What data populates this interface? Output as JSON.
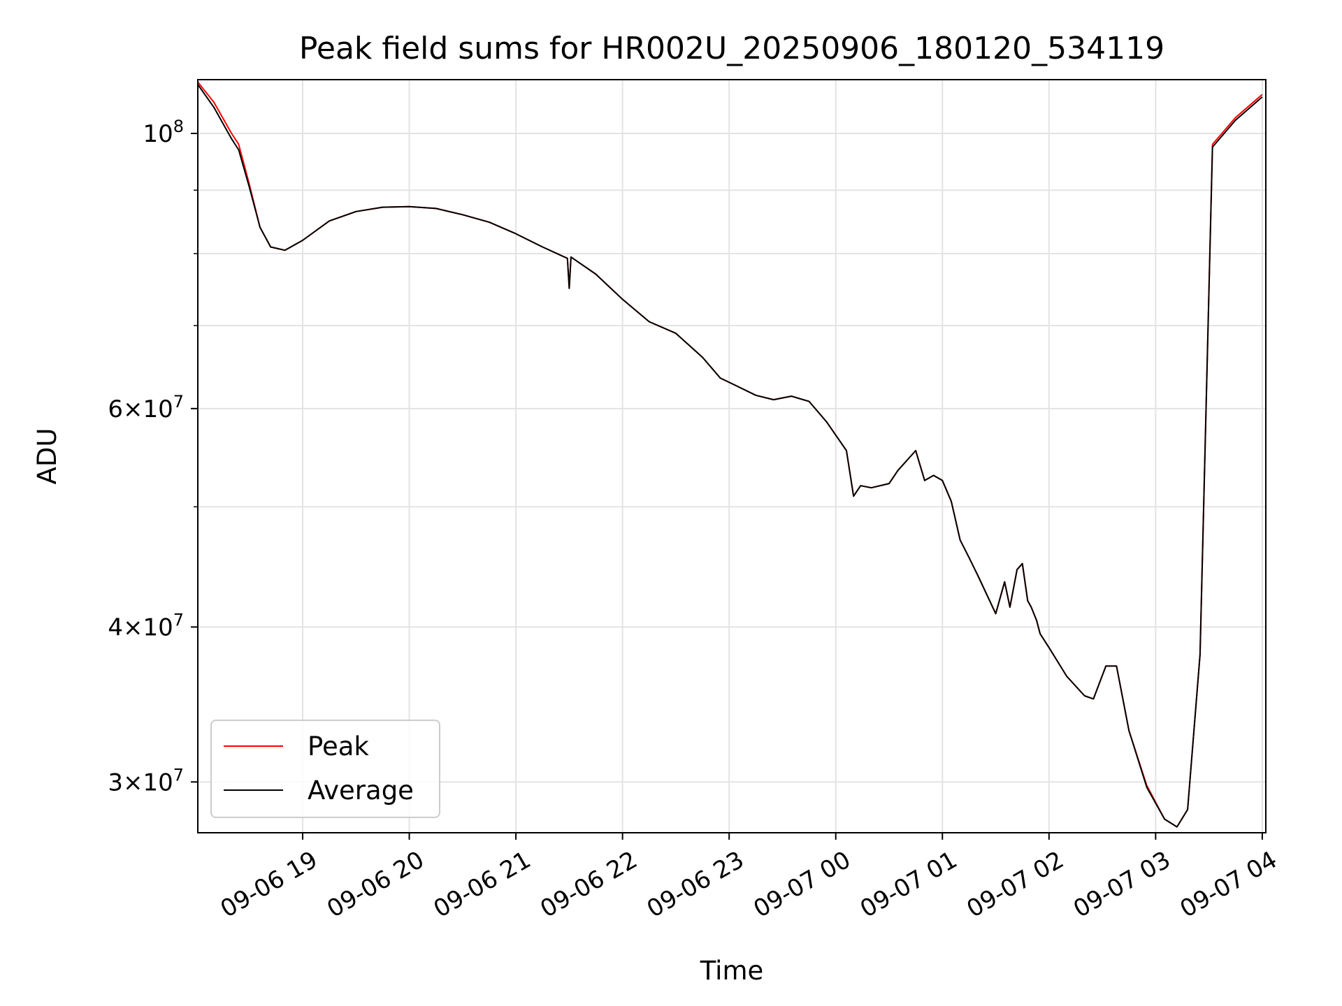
{
  "chart_data": {
    "type": "line",
    "title": "Peak field sums for HR002U_20250906_180120_534119",
    "xlabel": "Time",
    "ylabel": "ADU",
    "yscale": "log",
    "grid": true,
    "legend_placement": "lower-left",
    "xlim": [
      "2025-09-06 18:01",
      "2025-09-07 04:02"
    ],
    "ylim": [
      27300000,
      110500000
    ],
    "x_ticks": [
      "09-06 19",
      "09-06 20",
      "09-06 21",
      "09-06 22",
      "09-06 23",
      "09-07 00",
      "09-07 01",
      "09-07 02",
      "09-07 03",
      "09-07 04"
    ],
    "y_ticks": [
      {
        "value": 30000000,
        "mantissa": "3",
        "exponent": "7"
      },
      {
        "value": 40000000,
        "mantissa": "4",
        "exponent": "7"
      },
      {
        "value": 60000000,
        "mantissa": "6",
        "exponent": "7"
      },
      {
        "value": 100000000,
        "mantissa": "",
        "exponent": "8"
      }
    ],
    "y_minor_ticks": [
      50000000,
      70000000,
      80000000,
      90000000
    ],
    "series": [
      {
        "name": "Peak",
        "color": "#ff0000",
        "x": [
          "2025-09-06 18:01",
          "2025-09-06 18:10",
          "2025-09-06 18:20",
          "2025-09-06 18:24",
          "2025-09-06 18:30",
          "2025-09-06 18:36",
          "2025-09-06 18:42",
          "2025-09-06 18:50",
          "2025-09-06 19:00",
          "2025-09-06 19:15",
          "2025-09-06 19:30",
          "2025-09-06 19:45",
          "2025-09-06 20:00",
          "2025-09-06 20:15",
          "2025-09-06 20:30",
          "2025-09-06 20:45",
          "2025-09-06 21:00",
          "2025-09-06 21:15",
          "2025-09-06 21:29",
          "2025-09-06 21:30",
          "2025-09-06 21:31",
          "2025-09-06 21:45",
          "2025-09-06 22:00",
          "2025-09-06 22:15",
          "2025-09-06 22:30",
          "2025-09-06 22:45",
          "2025-09-06 22:55",
          "2025-09-06 23:05",
          "2025-09-06 23:15",
          "2025-09-06 23:25",
          "2025-09-06 23:35",
          "2025-09-06 23:45",
          "2025-09-06 23:55",
          "2025-09-07 00:06",
          "2025-09-07 00:10",
          "2025-09-07 00:14",
          "2025-09-07 00:20",
          "2025-09-07 00:30",
          "2025-09-07 00:35",
          "2025-09-07 00:45",
          "2025-09-07 00:50",
          "2025-09-07 00:55",
          "2025-09-07 01:00",
          "2025-09-07 01:05",
          "2025-09-07 01:10",
          "2025-09-07 01:15",
          "2025-09-07 01:20",
          "2025-09-07 01:30",
          "2025-09-07 01:35",
          "2025-09-07 01:38",
          "2025-09-07 01:42",
          "2025-09-07 01:45",
          "2025-09-07 01:48",
          "2025-09-07 01:50",
          "2025-09-07 01:53",
          "2025-09-07 01:55",
          "2025-09-07 02:00",
          "2025-09-07 02:10",
          "2025-09-07 02:20",
          "2025-09-07 02:25",
          "2025-09-07 02:32",
          "2025-09-07 02:38",
          "2025-09-07 02:45",
          "2025-09-07 02:55",
          "2025-09-07 03:05",
          "2025-09-07 03:12",
          "2025-09-07 03:18",
          "2025-09-07 03:25",
          "2025-09-07 03:32",
          "2025-09-07 03:45",
          "2025-09-07 04:00"
        ],
        "y": [
          110000000,
          106000000,
          100000000,
          98000000,
          91000000,
          84000000,
          81000000,
          80500000,
          82000000,
          85000000,
          86500000,
          87200000,
          87300000,
          87000000,
          86000000,
          84800000,
          83000000,
          81000000,
          79300000,
          75000000,
          79500000,
          77000000,
          73500000,
          70500000,
          69000000,
          66000000,
          63500000,
          62500000,
          61500000,
          61000000,
          61400000,
          60800000,
          58500000,
          55500000,
          51000000,
          52000000,
          51800000,
          52200000,
          53500000,
          55500000,
          52500000,
          53000000,
          52500000,
          50500000,
          47000000,
          45500000,
          44000000,
          41000000,
          43500000,
          41500000,
          44500000,
          45000000,
          42000000,
          41500000,
          40500000,
          39500000,
          38500000,
          36500000,
          35200000,
          35000000,
          37200000,
          37200000,
          33000000,
          29800000,
          28000000,
          27600000,
          28500000,
          38000000,
          98000000,
          103000000,
          107500000
        ]
      },
      {
        "name": "Average",
        "color": "#000000",
        "x": [
          "2025-09-06 18:01",
          "2025-09-06 18:10",
          "2025-09-06 18:20",
          "2025-09-06 18:24",
          "2025-09-06 18:30",
          "2025-09-06 18:36",
          "2025-09-06 18:42",
          "2025-09-06 18:50",
          "2025-09-06 19:00",
          "2025-09-06 19:15",
          "2025-09-06 19:30",
          "2025-09-06 19:45",
          "2025-09-06 20:00",
          "2025-09-06 20:15",
          "2025-09-06 20:30",
          "2025-09-06 20:45",
          "2025-09-06 21:00",
          "2025-09-06 21:15",
          "2025-09-06 21:29",
          "2025-09-06 21:30",
          "2025-09-06 21:31",
          "2025-09-06 21:45",
          "2025-09-06 22:00",
          "2025-09-06 22:15",
          "2025-09-06 22:30",
          "2025-09-06 22:45",
          "2025-09-06 22:55",
          "2025-09-06 23:05",
          "2025-09-06 23:15",
          "2025-09-06 23:25",
          "2025-09-06 23:35",
          "2025-09-06 23:45",
          "2025-09-06 23:55",
          "2025-09-07 00:06",
          "2025-09-07 00:10",
          "2025-09-07 00:14",
          "2025-09-07 00:20",
          "2025-09-07 00:30",
          "2025-09-07 00:35",
          "2025-09-07 00:45",
          "2025-09-07 00:50",
          "2025-09-07 00:55",
          "2025-09-07 01:00",
          "2025-09-07 01:05",
          "2025-09-07 01:10",
          "2025-09-07 01:15",
          "2025-09-07 01:20",
          "2025-09-07 01:30",
          "2025-09-07 01:35",
          "2025-09-07 01:38",
          "2025-09-07 01:42",
          "2025-09-07 01:45",
          "2025-09-07 01:48",
          "2025-09-07 01:50",
          "2025-09-07 01:53",
          "2025-09-07 01:55",
          "2025-09-07 02:00",
          "2025-09-07 02:10",
          "2025-09-07 02:20",
          "2025-09-07 02:25",
          "2025-09-07 02:32",
          "2025-09-07 02:38",
          "2025-09-07 02:45",
          "2025-09-07 02:55",
          "2025-09-07 03:05",
          "2025-09-07 03:12",
          "2025-09-07 03:18",
          "2025-09-07 03:25",
          "2025-09-07 03:32",
          "2025-09-07 03:45",
          "2025-09-07 04:00"
        ],
        "y": [
          109500000,
          105000000,
          99000000,
          97000000,
          90500000,
          84000000,
          81000000,
          80500000,
          82000000,
          85000000,
          86500000,
          87200000,
          87300000,
          87000000,
          86000000,
          84800000,
          83000000,
          81000000,
          79300000,
          75000000,
          79500000,
          77000000,
          73500000,
          70500000,
          69000000,
          66000000,
          63500000,
          62500000,
          61500000,
          61000000,
          61400000,
          60800000,
          58500000,
          55500000,
          51000000,
          52000000,
          51800000,
          52200000,
          53500000,
          55500000,
          52500000,
          53000000,
          52500000,
          50500000,
          47000000,
          45500000,
          44000000,
          41000000,
          43500000,
          41500000,
          44500000,
          45000000,
          42000000,
          41500000,
          40500000,
          39500000,
          38500000,
          36500000,
          35200000,
          35000000,
          37200000,
          37200000,
          33000000,
          29700000,
          28000000,
          27600000,
          28500000,
          38000000,
          97500000,
          102500000,
          107000000
        ]
      }
    ]
  }
}
